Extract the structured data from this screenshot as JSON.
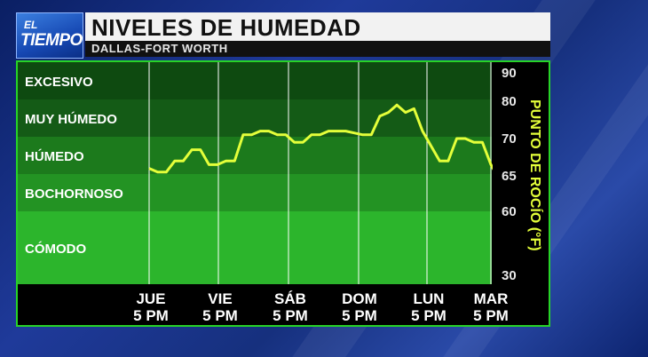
{
  "header": {
    "logo_line1": "EL",
    "logo_line2": "TIEMPO",
    "title": "NIVELES DE HUMEDAD",
    "subtitle": "DALLAS-FORT WORTH"
  },
  "colors": {
    "frame": "#27d327",
    "line": "#e4ff3a",
    "excesivo": "#0e4a10",
    "muy_humedo": "#145b16",
    "humedo": "#1c7a1c",
    "bochornoso": "#239323",
    "comodo": "#2cb52c"
  },
  "chart_data": {
    "type": "line",
    "ylabel": "PUNTO DE ROCÍO (°F)",
    "yticks": [
      30,
      60,
      65,
      70,
      80,
      90
    ],
    "x_categories": [
      {
        "day": "JUE",
        "time": "5 PM"
      },
      {
        "day": "VIE",
        "time": "5 PM"
      },
      {
        "day": "SÁB",
        "time": "5 PM"
      },
      {
        "day": "DOM",
        "time": "5 PM"
      },
      {
        "day": "LUN",
        "time": "5 PM"
      },
      {
        "day": "MAR",
        "time": "5 PM"
      }
    ],
    "bands": [
      {
        "label": "EXCESIVO",
        "from": 80,
        "to": 90
      },
      {
        "label": "MUY HÚMEDO",
        "from": 75,
        "to": 80
      },
      {
        "label": "HÚMEDO",
        "from": 70,
        "to": 75
      },
      {
        "label": "BOCHORNOSO",
        "from": 65,
        "to": 70
      },
      {
        "label": "CÓMODO",
        "from": 30,
        "to": 65
      }
    ],
    "x_hours": [
      0,
      3,
      6,
      9,
      12,
      15,
      18,
      21,
      24,
      27,
      30,
      33,
      36,
      39,
      42,
      45,
      48,
      51,
      54,
      57,
      60,
      63,
      66,
      69,
      72,
      75,
      78,
      81,
      84,
      87,
      90,
      93,
      96,
      99,
      102,
      105,
      108,
      111,
      114,
      117,
      120,
      123,
      126,
      129
    ],
    "series": [
      {
        "values": [
          66,
          65.5,
          65.5,
          67,
          67,
          68.5,
          68.5,
          66.5,
          66.5,
          67,
          67,
          71,
          71,
          72,
          72,
          71,
          71,
          69.5,
          69.5,
          71,
          71,
          72,
          72,
          72,
          71.5,
          71,
          71,
          76,
          77,
          79,
          77,
          78,
          72,
          69,
          67,
          67,
          70,
          70,
          69.5,
          69.5,
          66.5,
          64.5,
          64.5,
          68
        ]
      }
    ]
  }
}
